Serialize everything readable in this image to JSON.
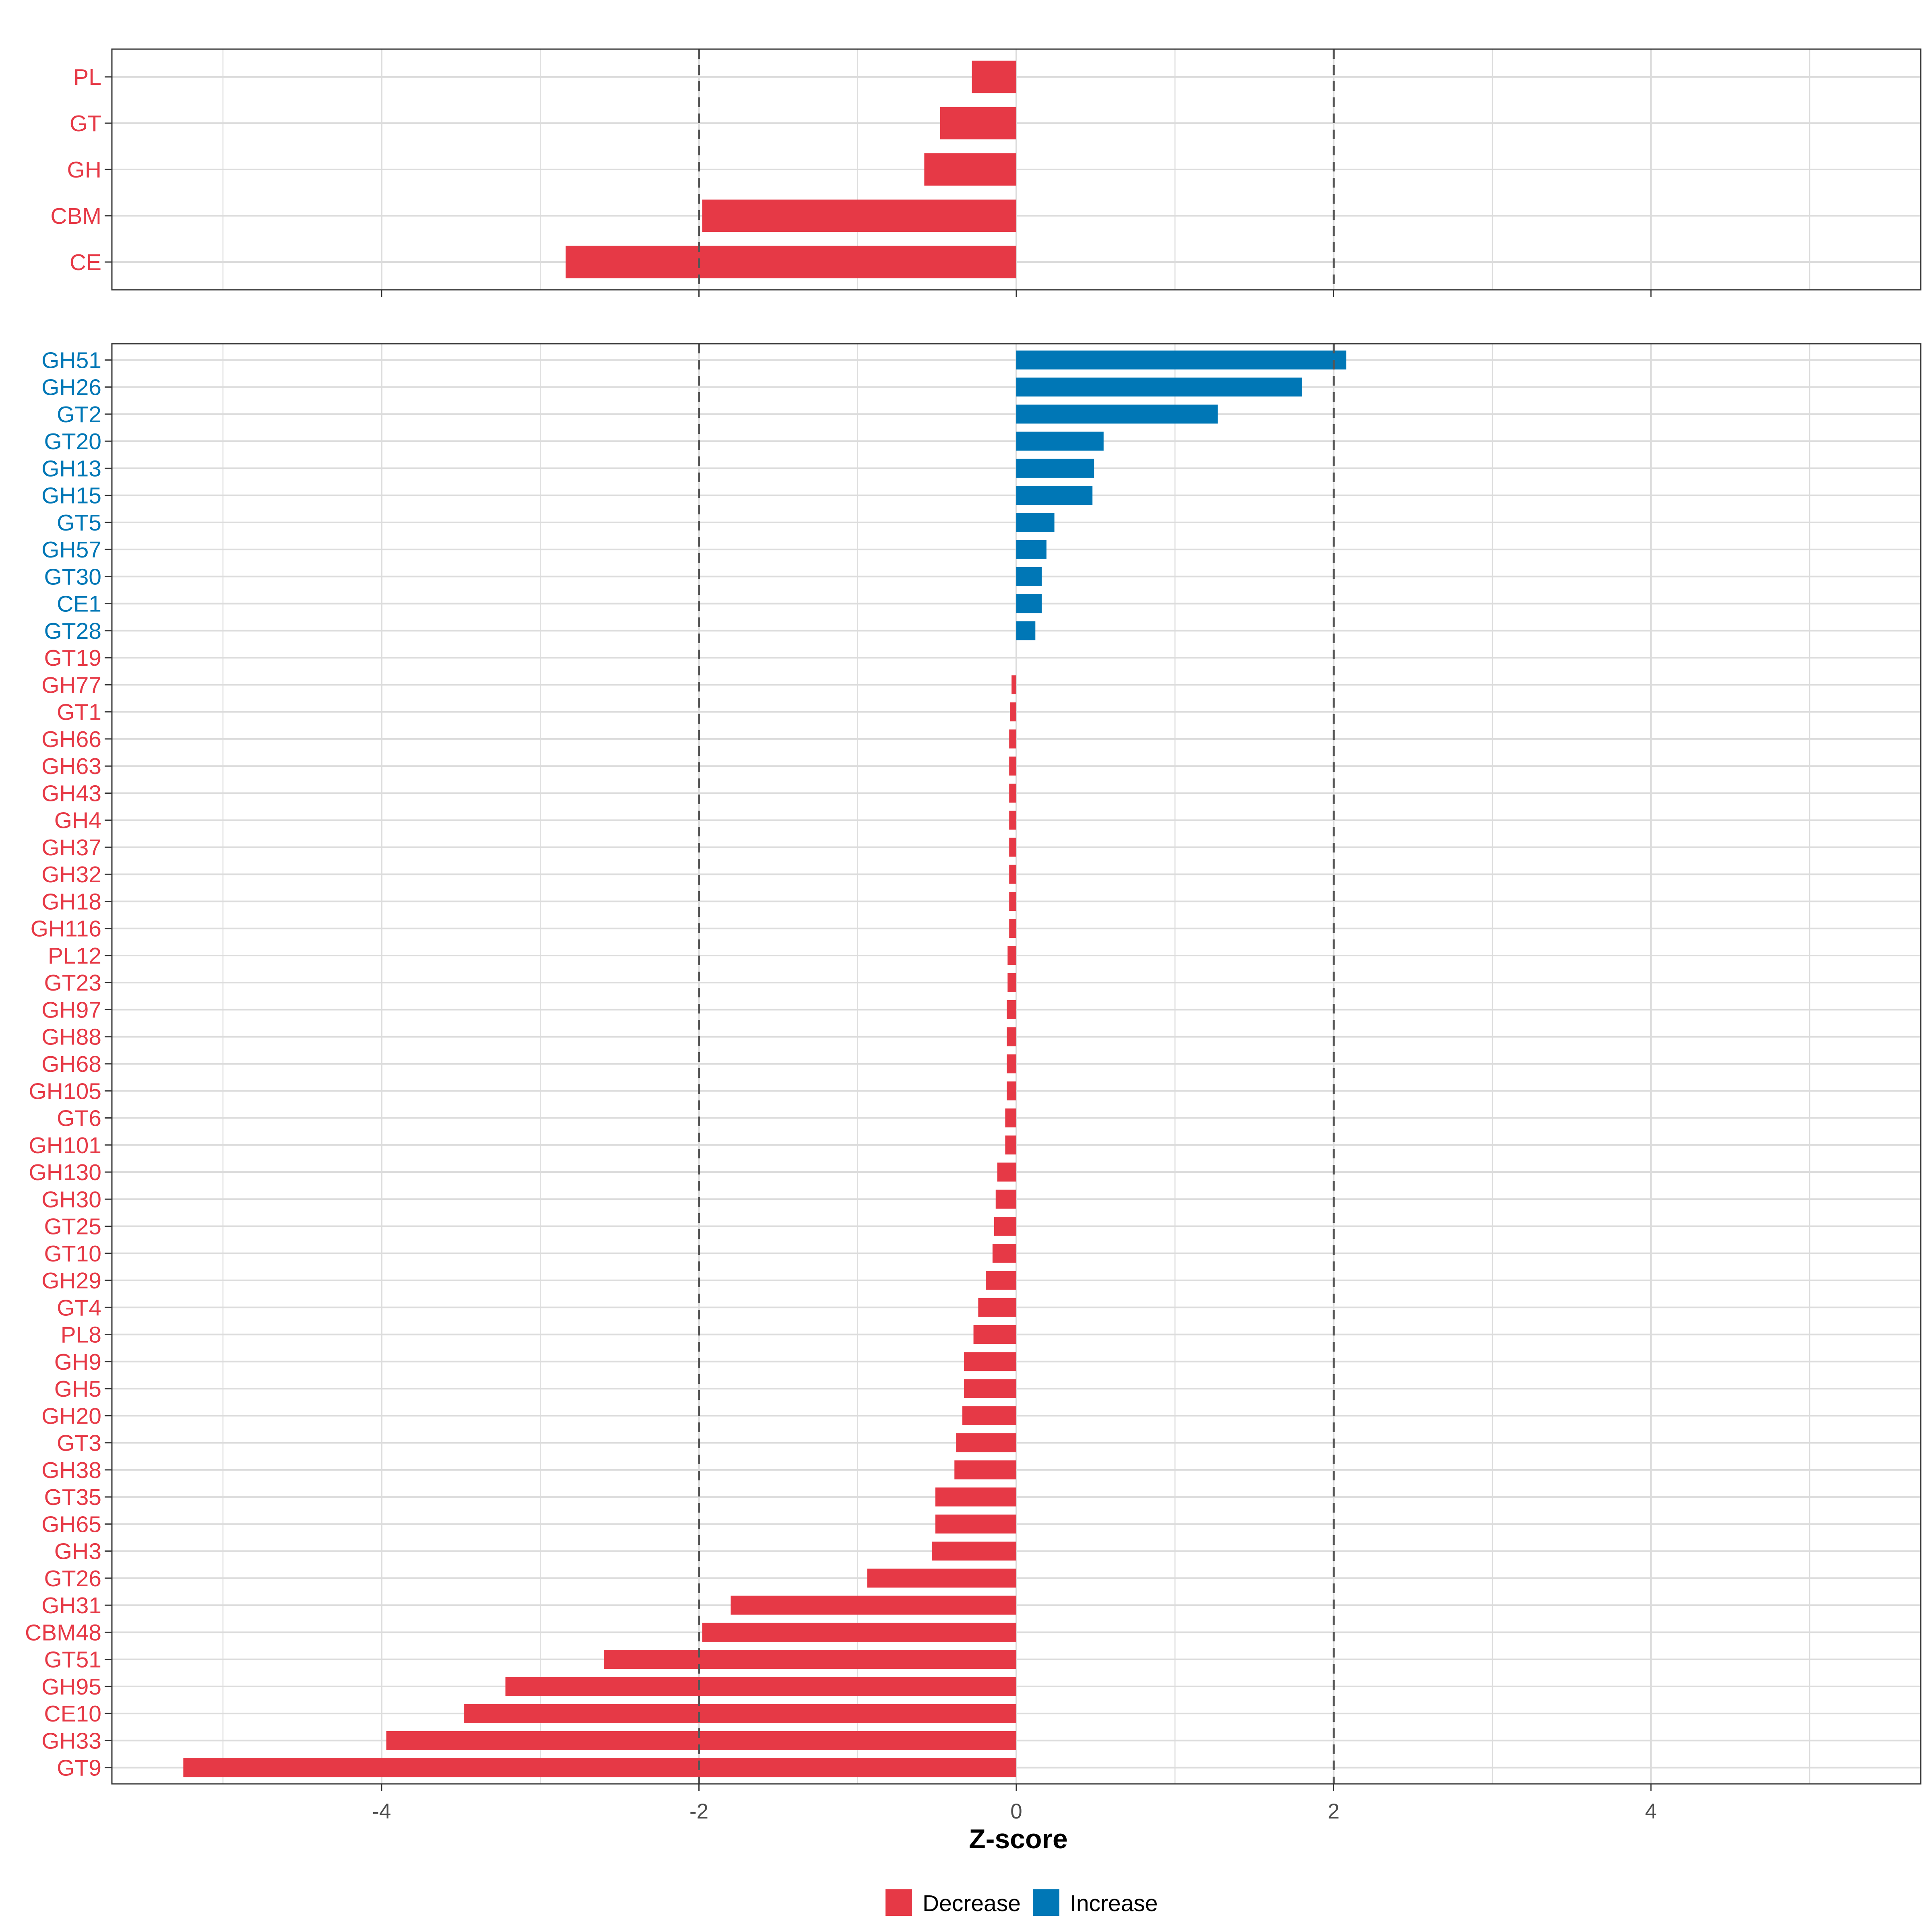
{
  "colors": {
    "decrease": "#E63946",
    "increase": "#0077B6"
  },
  "chart_data": [
    {
      "type": "bar",
      "orientation": "horizontal",
      "panel": "top",
      "xlim": [
        -5.7,
        5.7
      ],
      "x_ticks": [
        -4,
        -2,
        0,
        2,
        4
      ],
      "reference_lines": [
        -2,
        2
      ],
      "categories": [
        "PL",
        "GT",
        "GH",
        "CBM",
        "CE"
      ],
      "values": [
        -0.28,
        -0.48,
        -0.58,
        -1.98,
        -2.84
      ],
      "directions": [
        "Decrease",
        "Decrease",
        "Decrease",
        "Decrease",
        "Decrease"
      ]
    },
    {
      "type": "bar",
      "orientation": "horizontal",
      "panel": "bottom",
      "xlim": [
        -5.7,
        5.7
      ],
      "x_ticks": [
        -4,
        -2,
        0,
        2,
        4
      ],
      "x_tick_labels": [
        "-4",
        "-2",
        "0",
        "2",
        "4"
      ],
      "xlabel": "Z-score",
      "reference_lines": [
        -2,
        2
      ],
      "categories": [
        "GH51",
        "GH26",
        "GT2",
        "GT20",
        "GH13",
        "GH15",
        "GT5",
        "GH57",
        "GT30",
        "CE1",
        "GT28",
        "GT19",
        "GH77",
        "GT1",
        "GH66",
        "GH63",
        "GH43",
        "GH4",
        "GH37",
        "GH32",
        "GH18",
        "GH116",
        "PL12",
        "GT23",
        "GH97",
        "GH88",
        "GH68",
        "GH105",
        "GT6",
        "GH101",
        "GH130",
        "GH30",
        "GT25",
        "GT10",
        "GH29",
        "GT4",
        "PL8",
        "GH9",
        "GH5",
        "GH20",
        "GT3",
        "GH38",
        "GT35",
        "GH65",
        "GH3",
        "GT26",
        "GH31",
        "CBM48",
        "GT51",
        "GH95",
        "CE10",
        "GH33",
        "GT9"
      ],
      "values": [
        2.08,
        1.8,
        1.27,
        0.55,
        0.49,
        0.48,
        0.24,
        0.19,
        0.16,
        0.16,
        0.12,
        0.0,
        -0.03,
        -0.04,
        -0.045,
        -0.045,
        -0.045,
        -0.045,
        -0.045,
        -0.045,
        -0.045,
        -0.045,
        -0.055,
        -0.055,
        -0.06,
        -0.06,
        -0.06,
        -0.06,
        -0.07,
        -0.07,
        -0.12,
        -0.13,
        -0.14,
        -0.15,
        -0.19,
        -0.24,
        -0.27,
        -0.33,
        -0.33,
        -0.34,
        -0.38,
        -0.39,
        -0.51,
        -0.51,
        -0.53,
        -0.94,
        -1.8,
        -1.98,
        -2.6,
        -3.22,
        -3.48,
        -3.97,
        -5.25
      ],
      "directions": [
        "Increase",
        "Increase",
        "Increase",
        "Increase",
        "Increase",
        "Increase",
        "Increase",
        "Increase",
        "Increase",
        "Increase",
        "Increase",
        "Decrease",
        "Decrease",
        "Decrease",
        "Decrease",
        "Decrease",
        "Decrease",
        "Decrease",
        "Decrease",
        "Decrease",
        "Decrease",
        "Decrease",
        "Decrease",
        "Decrease",
        "Decrease",
        "Decrease",
        "Decrease",
        "Decrease",
        "Decrease",
        "Decrease",
        "Decrease",
        "Decrease",
        "Decrease",
        "Decrease",
        "Decrease",
        "Decrease",
        "Decrease",
        "Decrease",
        "Decrease",
        "Decrease",
        "Decrease",
        "Decrease",
        "Decrease",
        "Decrease",
        "Decrease",
        "Decrease",
        "Decrease",
        "Decrease",
        "Decrease",
        "Decrease",
        "Decrease",
        "Decrease",
        "Decrease"
      ]
    }
  ],
  "legend": {
    "items": [
      {
        "label": "Decrease",
        "color": "#E63946"
      },
      {
        "label": "Increase",
        "color": "#0077B6"
      }
    ]
  }
}
